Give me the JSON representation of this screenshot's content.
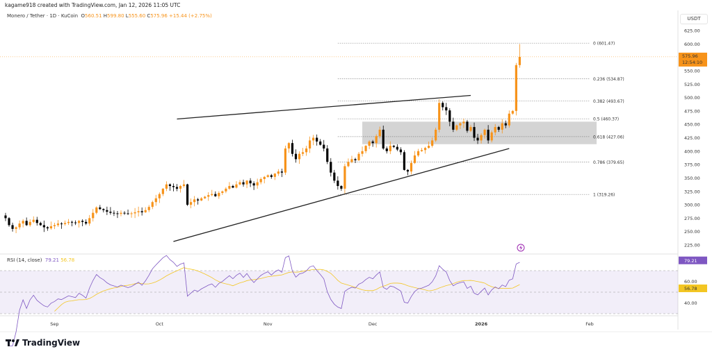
{
  "credit": "kagame918 created with TradingView.com, Jan 12, 2026 11:05 UTC",
  "legend": {
    "symbol": "Monero / Tether · 1D · KuCoin",
    "o_label": "O",
    "o": "560.51",
    "h_label": "H",
    "h": "599.80",
    "l_label": "L",
    "l": "555.60",
    "c_label": "C",
    "c": "575.96",
    "change": "+15.44 (+2.75%)"
  },
  "price_axis": {
    "unit": "USDT",
    "ticks": [
      "625.00",
      "600.00",
      "550.00",
      "525.00",
      "500.00",
      "475.00",
      "450.00",
      "425.00",
      "400.00",
      "375.00",
      "350.00",
      "325.00",
      "300.00",
      "275.00",
      "250.00",
      "225.00"
    ],
    "last_price": "575.96",
    "countdown": "12:54:10"
  },
  "rsi": {
    "label": "RSI (14, close)",
    "value": "79.21",
    "ma": "56.78",
    "ticks": [
      "60.00",
      "40.00"
    ],
    "upper_band": 70,
    "lower_band": 30
  },
  "time_axis": [
    {
      "label": "Sep",
      "date": "2025-09-01"
    },
    {
      "label": "Oct",
      "date": "2025-10-01"
    },
    {
      "label": "Nov",
      "date": "2025-11-01"
    },
    {
      "label": "Dec",
      "date": "2025-12-01"
    },
    {
      "label": "2026",
      "date": "2026-01-01"
    },
    {
      "label": "Feb",
      "date": "2026-02-01"
    }
  ],
  "footer": {
    "brand": "TradingView"
  },
  "colors": {
    "up": "#f7931a",
    "down": "#000000",
    "rsi": "#7e57c2",
    "rsi_ma": "#f3c623",
    "fib": "#888888",
    "box": "#cfcfcf"
  },
  "chart_data": {
    "type": "candlestick",
    "start_date": "2025-08-18",
    "interval": "1D",
    "closes": [
      275,
      262,
      255,
      258,
      265,
      270,
      262,
      268,
      272,
      266,
      262,
      258,
      256,
      260,
      262,
      265,
      264,
      266,
      268,
      267,
      266,
      270,
      268,
      265,
      275,
      285,
      295,
      292,
      290,
      287,
      285,
      284,
      283,
      285,
      284,
      283,
      284,
      286,
      288,
      286,
      290,
      296,
      305,
      312,
      320,
      330,
      338,
      335,
      333,
      330,
      335,
      338,
      300,
      305,
      310,
      308,
      312,
      315,
      318,
      320,
      316,
      322,
      325,
      330,
      335,
      332,
      338,
      342,
      338,
      345,
      340,
      336,
      342,
      348,
      352,
      355,
      352,
      358,
      362,
      360,
      405,
      415,
      395,
      385,
      395,
      398,
      405,
      420,
      425,
      418,
      412,
      405,
      380,
      360,
      345,
      335,
      330,
      372,
      380,
      385,
      383,
      395,
      400,
      410,
      418,
      415,
      428,
      440,
      405,
      400,
      410,
      408,
      403,
      398,
      365,
      362,
      378,
      392,
      400,
      402,
      406,
      410,
      420,
      440,
      490,
      482,
      476,
      455,
      440,
      448,
      452,
      455,
      438,
      445,
      425,
      420,
      430,
      440,
      420,
      435,
      445,
      440,
      452,
      448,
      470,
      475,
      560.51,
      575.96
    ],
    "last_candle": {
      "open": 560.51,
      "high": 599.8,
      "low": 555.6,
      "close": 575.96
    },
    "ylim": [
      212,
      635
    ],
    "fib_levels": [
      {
        "ratio": "0",
        "price": 601.47
      },
      {
        "ratio": "0.236",
        "price": 534.87
      },
      {
        "ratio": "0.382",
        "price": 493.67
      },
      {
        "ratio": "0.5",
        "price": 460.37
      },
      {
        "ratio": "0.618",
        "price": 427.06
      },
      {
        "ratio": "0.786",
        "price": 379.65
      },
      {
        "ratio": "1",
        "price": 319.26
      }
    ],
    "fib_range": [
      "2025-11-21",
      "2026-02-01"
    ],
    "box": {
      "from": "2025-11-28",
      "to": "2026-02-03",
      "top": 455,
      "bottom": 413
    },
    "trendlines": [
      {
        "from": [
          "2025-10-06",
          460
        ],
        "to": [
          "2025-12-29",
          504
        ]
      },
      {
        "from": [
          "2025-10-05",
          231.5
        ],
        "to": [
          "2026-01-09",
          405
        ]
      }
    ]
  }
}
